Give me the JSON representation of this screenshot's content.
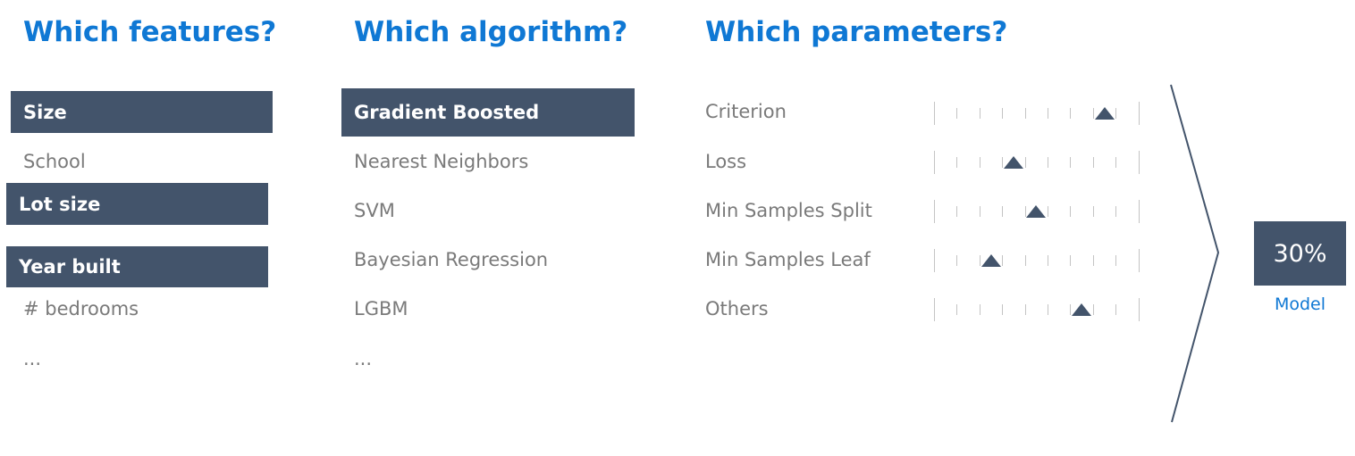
{
  "headings": {
    "features": "Which features?",
    "algorithm": "Which algorithm?",
    "parameters": "Which parameters?"
  },
  "features": [
    {
      "label": "Size",
      "selected": true
    },
    {
      "label": "School",
      "selected": false
    },
    {
      "label": "Lot size",
      "selected": true
    },
    {
      "label": "Year built",
      "selected": true
    },
    {
      "label": "# bedrooms",
      "selected": false
    },
    {
      "label": "...",
      "selected": false
    }
  ],
  "algorithms": [
    {
      "label": "Gradient Boosted",
      "selected": true
    },
    {
      "label": "Nearest Neighbors",
      "selected": false
    },
    {
      "label": "SVM",
      "selected": false
    },
    {
      "label": "Bayesian Regression",
      "selected": false
    },
    {
      "label": "LGBM",
      "selected": false
    },
    {
      "label": "...",
      "selected": false
    }
  ],
  "parameters": [
    {
      "label": "Criterion",
      "setting_index": 7
    },
    {
      "label": "Loss",
      "setting_index": 3
    },
    {
      "label": "Min Samples Split",
      "setting_index": 4
    },
    {
      "label": "Min Samples Leaf",
      "setting_index": 2
    },
    {
      "label": "Others",
      "setting_index": 6
    }
  ],
  "slider_positions": 10,
  "result": {
    "value": "30%",
    "label": "Model"
  },
  "colors": {
    "heading": "#0f78d4",
    "selected_fill": "#43546b",
    "unselected_text": "#7a7a7a"
  }
}
